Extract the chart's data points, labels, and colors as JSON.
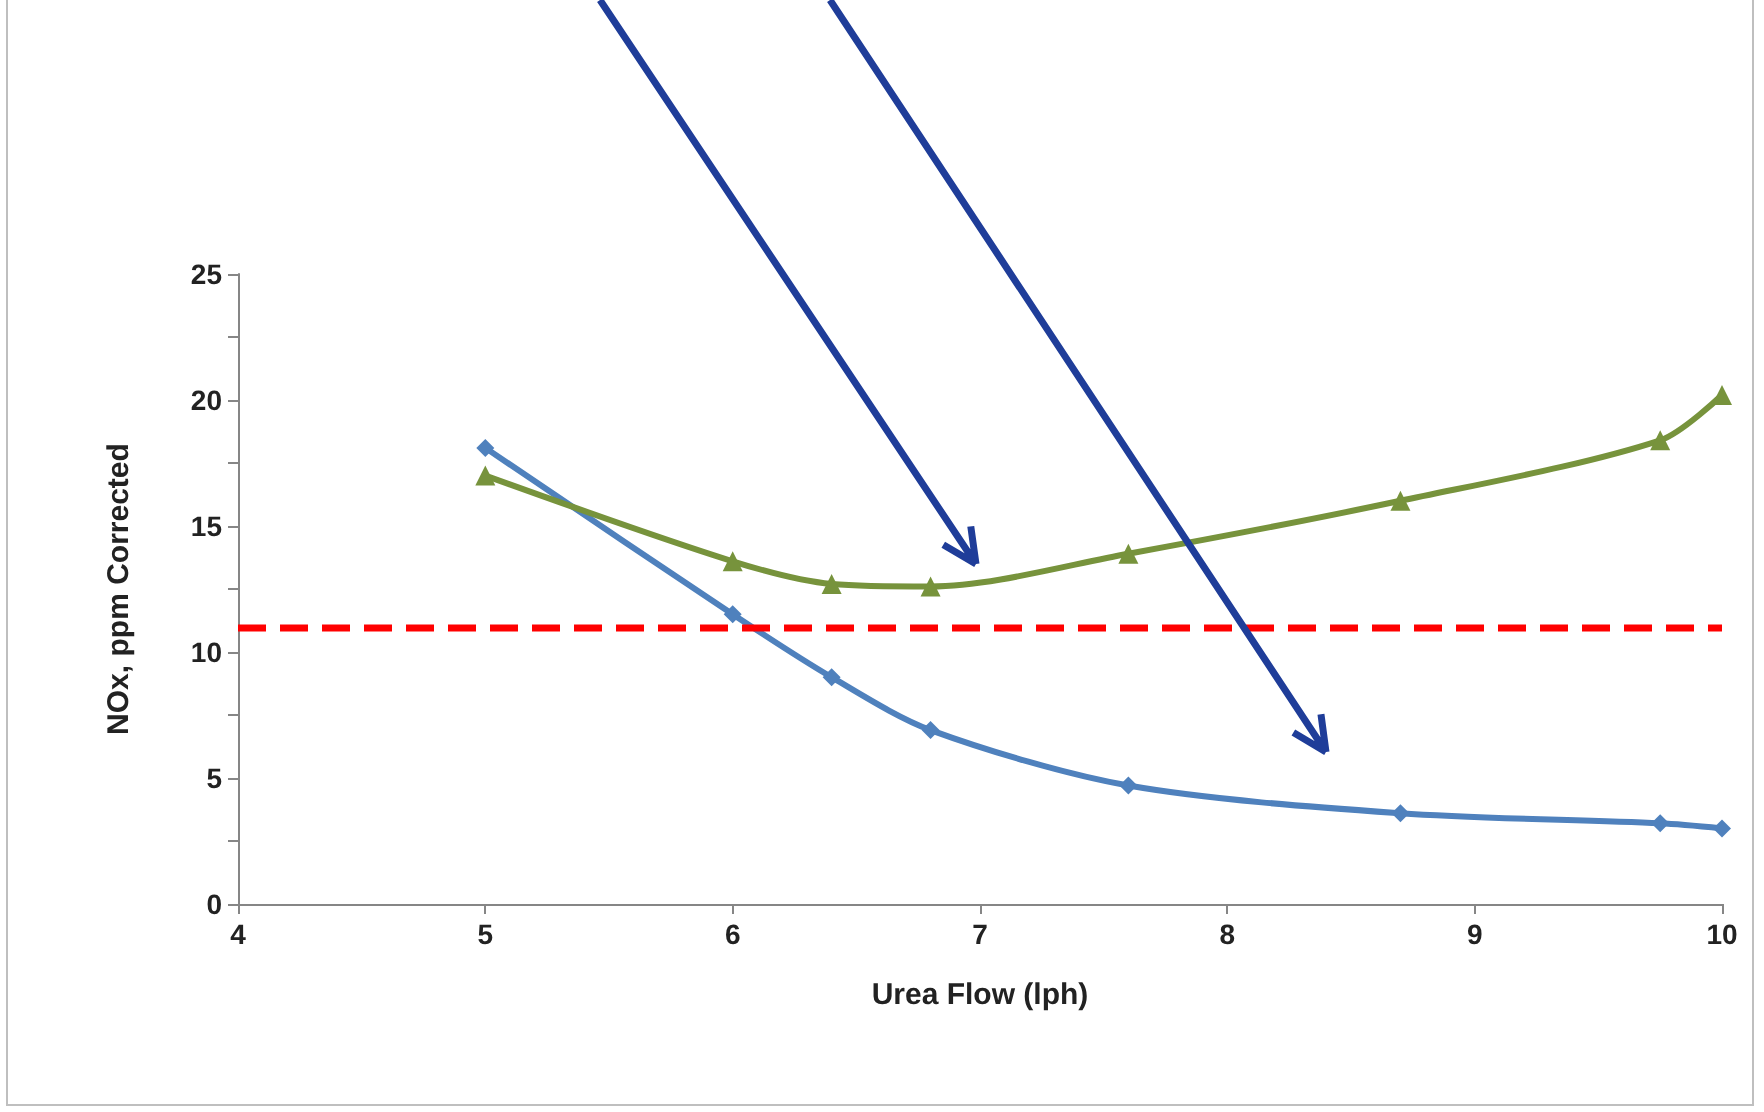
{
  "chart_data": {
    "type": "line",
    "xlabel": "Urea Flow (lph)",
    "ylabel": "NOx, ppm Corrected",
    "xlim": [
      4,
      10
    ],
    "xticks": [
      4,
      5,
      6,
      7,
      8,
      9,
      10
    ],
    "ylim": [
      0,
      25
    ],
    "yticks": [
      0,
      {
        "value": 2.5,
        "label": null
      },
      5,
      {
        "value": 7.5,
        "label": null
      },
      10,
      {
        "value": 12.5,
        "label": null
      },
      15,
      {
        "value": 17.5,
        "label": null
      },
      20,
      {
        "value": 22.5,
        "label": null
      },
      25
    ],
    "grid": false,
    "series": [
      {
        "color": "#4f81bd",
        "marker": "diamond",
        "x": [
          5,
          6,
          6.4,
          6.8,
          7.6,
          8.7,
          9.75,
          10
        ],
        "values": [
          18.1,
          11.5,
          9.0,
          6.9,
          4.7,
          3.6,
          3.2,
          3.0
        ]
      },
      {
        "color": "#77933c",
        "marker": "triangle",
        "x": [
          5,
          6,
          6.4,
          6.8,
          7.6,
          8.7,
          9.75,
          10
        ],
        "values": [
          17.0,
          13.6,
          12.7,
          12.6,
          13.9,
          16.0,
          18.4,
          20.2
        ]
      }
    ],
    "ref_lines": [
      {
        "axis": "y",
        "value": 11,
        "color": "#ff0000",
        "line_style": "dashed"
      }
    ]
  }
}
